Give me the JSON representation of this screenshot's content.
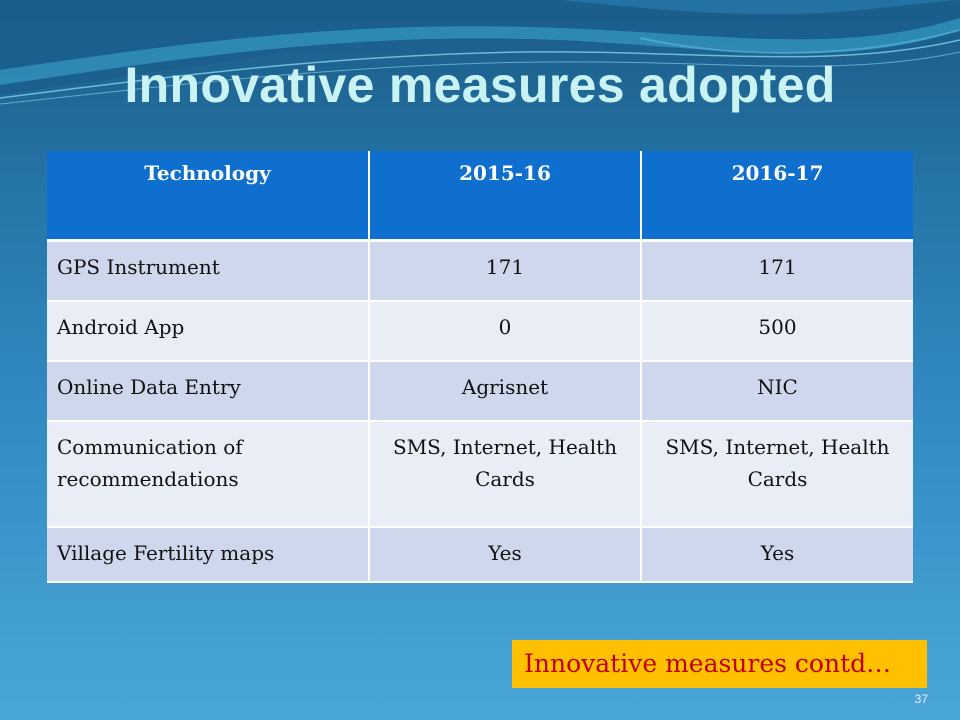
{
  "slide": {
    "title": "Innovative measures adopted",
    "table": {
      "headers": [
        "Technology",
        "2015-16",
        "2016-17"
      ],
      "rows": [
        [
          "GPS Instrument",
          "171",
          "171"
        ],
        [
          "Android App",
          "0",
          "500"
        ],
        [
          "Online Data Entry",
          "Agrisnet",
          "NIC"
        ],
        [
          "Communication of recommendations",
          "SMS, Internet, Health Cards",
          "SMS, Internet, Health Cards"
        ],
        [
          "Village Fertility maps",
          "Yes",
          "Yes"
        ]
      ]
    },
    "contd_label": "Innovative measures contd…",
    "page_number": "37"
  },
  "colors": {
    "header_fill": "#0f6fcf",
    "row_odd": "#cfd7ec",
    "row_even": "#e9edf6",
    "title_text": "#c9f3f3",
    "contd_fill": "#ffc000",
    "contd_text": "#c00000"
  }
}
